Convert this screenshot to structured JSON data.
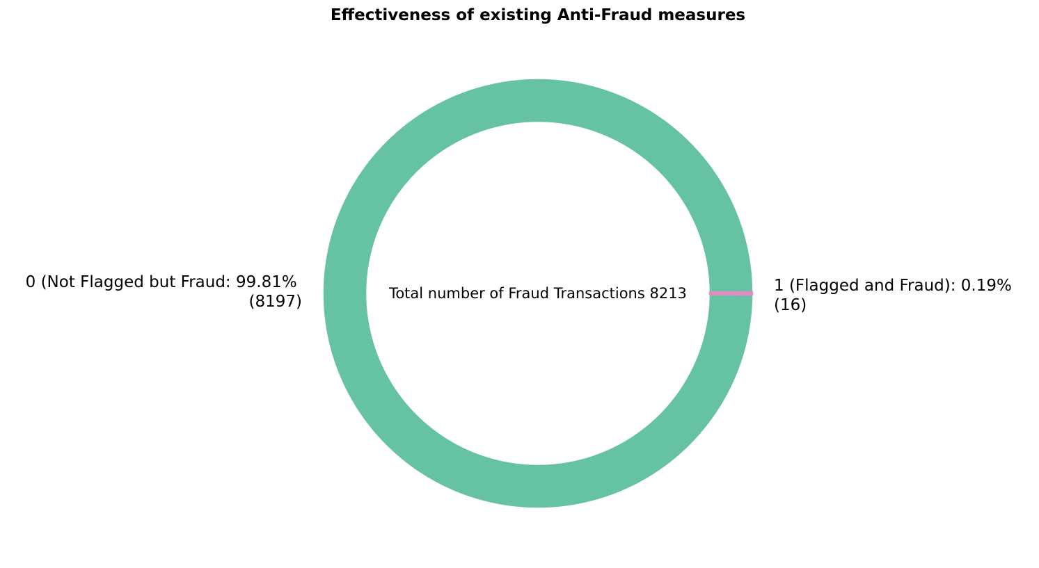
{
  "chart_data": {
    "type": "pie",
    "title": "Effectiveness of existing Anti-Fraud measures",
    "style": "donut",
    "center_text": "Total number of Fraud Transactions 8213",
    "slices": [
      {
        "label_line1": "1 (Flagged and Fraud): 0.19%",
        "label_line2": "(16)",
        "value": 16,
        "percent": 0.19,
        "color": "#e78ac3"
      },
      {
        "label_line1": "0 (Not Flagged but Fraud: 99.81%",
        "label_line2": "(8197)",
        "value": 8197,
        "percent": 99.81,
        "color": "#66c2a5"
      }
    ]
  }
}
